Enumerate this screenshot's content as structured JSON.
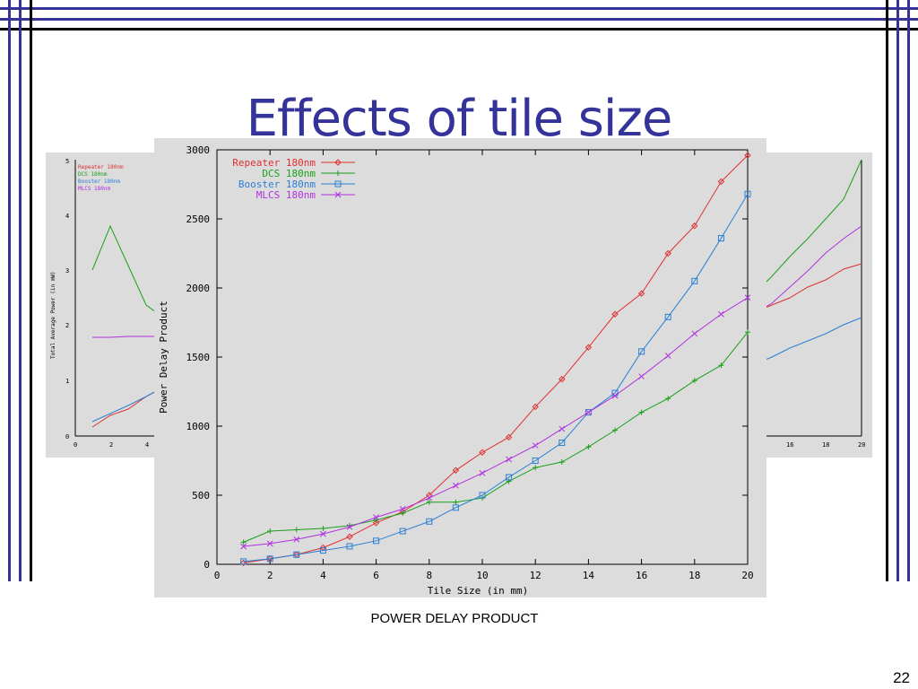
{
  "slide": {
    "title": "Effects of tile size",
    "caption": "POWER DELAY PRODUCT",
    "page_number": "22",
    "title_color": "#333399",
    "rule_color": "#333399"
  },
  "background_charts": {
    "left": {
      "ylabel": "Total Average Power (in mW)",
      "yticks": [
        "0",
        "1",
        "2",
        "3",
        "4",
        "5"
      ],
      "xticks": [
        "0",
        "2",
        "4"
      ],
      "legend": [
        "Repeater 180nm",
        "DCS 180nm",
        "Booster 180nm",
        "MLCS 180nm"
      ]
    },
    "right": {
      "xticks": [
        "16",
        "18",
        "20"
      ]
    }
  },
  "chart_data": {
    "type": "line",
    "title": "",
    "xlabel": "Tile Size (in mm)",
    "ylabel": "Power Delay Product",
    "xlim": [
      0,
      20
    ],
    "ylim": [
      0,
      3000
    ],
    "xticks": [
      0,
      2,
      4,
      6,
      8,
      10,
      12,
      14,
      16,
      18,
      20
    ],
    "yticks": [
      0,
      500,
      1000,
      1500,
      2000,
      2500,
      3000
    ],
    "legend_position": "top-left",
    "grid": false,
    "x": [
      1,
      2,
      3,
      4,
      5,
      6,
      7,
      8,
      9,
      10,
      11,
      12,
      13,
      14,
      15,
      16,
      17,
      18,
      19,
      20
    ],
    "series": [
      {
        "name": "Repeater 180nm",
        "color": "#e03030",
        "marker": "diamond",
        "values": [
          10,
          40,
          70,
          120,
          200,
          300,
          380,
          500,
          680,
          810,
          920,
          1140,
          1340,
          1570,
          1810,
          1960,
          2250,
          2450,
          2770,
          2960
        ]
      },
      {
        "name": "DCS 180nm",
        "color": "#1aa01a",
        "marker": "plus",
        "values": [
          160,
          240,
          250,
          260,
          280,
          320,
          370,
          450,
          450,
          480,
          600,
          700,
          740,
          850,
          970,
          1100,
          1200,
          1330,
          1440,
          1680
        ]
      },
      {
        "name": "Booster 180nm",
        "color": "#2a7fd4",
        "marker": "square",
        "values": [
          20,
          40,
          70,
          100,
          130,
          170,
          240,
          310,
          410,
          500,
          630,
          750,
          880,
          1100,
          1240,
          1540,
          1790,
          2050,
          2360,
          2680
        ]
      },
      {
        "name": "MLCS 180nm",
        "color": "#b030e0",
        "marker": "x",
        "values": [
          130,
          150,
          180,
          220,
          270,
          340,
          400,
          480,
          570,
          660,
          760,
          860,
          980,
          1100,
          1220,
          1360,
          1510,
          1670,
          1810,
          1930
        ]
      }
    ]
  }
}
